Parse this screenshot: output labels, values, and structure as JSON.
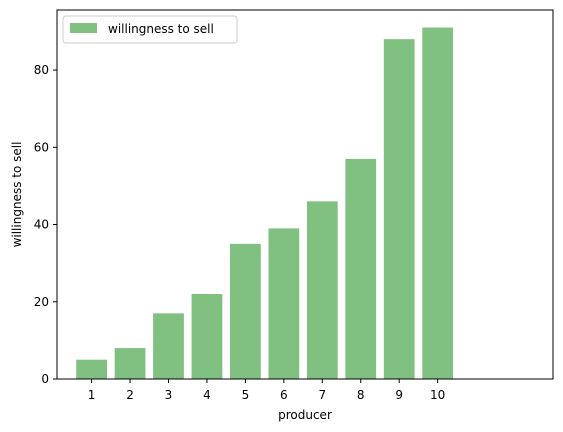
{
  "chart_data": {
    "type": "bar",
    "categories": [
      "1",
      "2",
      "3",
      "4",
      "5",
      "6",
      "7",
      "8",
      "9",
      "10"
    ],
    "series": [
      {
        "name": "willingness to sell",
        "values": [
          5,
          8,
          17,
          22,
          35,
          39,
          46,
          57,
          88,
          91
        ]
      }
    ],
    "xlabel": "producer",
    "ylabel": "willingness to sell",
    "yticks": [
      0,
      20,
      40,
      60,
      80
    ],
    "ylim": [
      0,
      95.55
    ],
    "grid": false,
    "legend_position": "top-left",
    "colors": {
      "bar": "#80c080",
      "axis": "#000000",
      "background": "#ffffff"
    }
  }
}
